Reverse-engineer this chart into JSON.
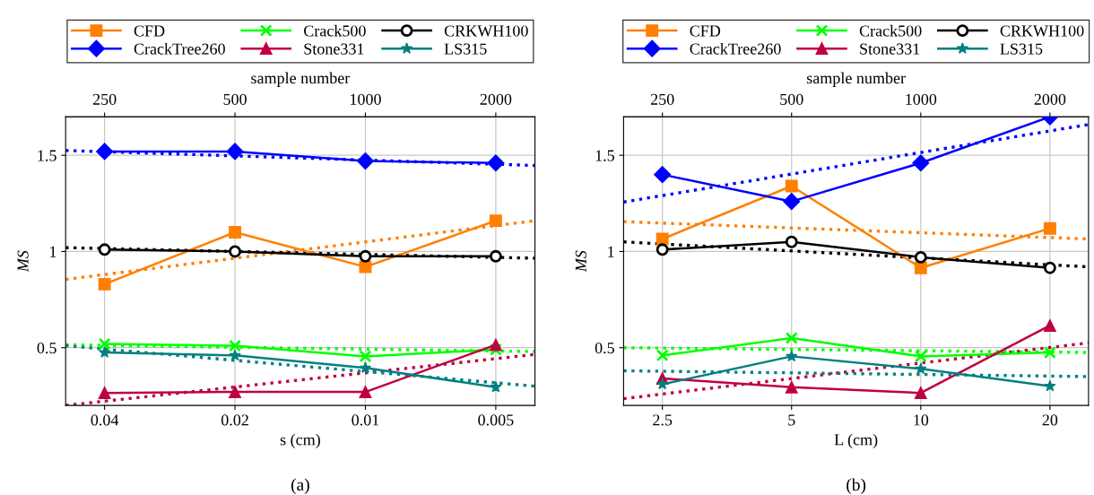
{
  "chart_data": [
    {
      "type": "line",
      "xlabel": "s (cm)",
      "ylabel": "MS",
      "x2label": "sample number",
      "log": "x",
      "annotations": [
        "(a)",
        {
          "text": "250",
          "x": 0.04
        },
        {
          "text": "500",
          "x": 0.02
        },
        {
          "text": "1000",
          "x": 0.01
        },
        {
          "text": "2000",
          "x": 0.005
        }
      ],
      "xlim": [
        0.0492,
        0.00406
      ],
      "xticks": [
        0.04,
        0.02,
        0.01,
        0.005
      ],
      "ylim": [
        0.2,
        1.7
      ],
      "yticks": [
        0.5,
        1,
        1.5
      ],
      "grid": true,
      "legend": "top",
      "line_style": "solid",
      "series": [
        {
          "name": "CFD",
          "color": "#ff7f00",
          "marker": "square",
          "x": [
            0.04,
            0.02,
            0.01,
            0.005
          ],
          "values": [
            0.83,
            1.1,
            0.92,
            1.16
          ]
        },
        {
          "name": "CrackTree260",
          "color": "#0000ff",
          "marker": "diamond",
          "x": [
            0.04,
            0.02,
            0.01,
            0.005
          ],
          "values": [
            1.52,
            1.52,
            1.47,
            1.46
          ]
        },
        {
          "name": "Crack500",
          "color": "#00ff00",
          "marker": "cross",
          "x": [
            0.04,
            0.02,
            0.01,
            0.005
          ],
          "values": [
            0.52,
            0.51,
            0.455,
            0.49
          ]
        },
        {
          "name": "Stone331",
          "color": "#bf0040",
          "marker": "triangle",
          "x": [
            0.04,
            0.02,
            0.01,
            0.005
          ],
          "values": [
            0.265,
            0.27,
            0.27,
            0.515
          ]
        },
        {
          "name": "CRKWH100",
          "color": "#000000",
          "marker": "circle",
          "x": [
            0.04,
            0.02,
            0.01,
            0.005
          ],
          "values": [
            1.01,
            1.0,
            0.975,
            0.975
          ]
        },
        {
          "name": "LS315",
          "color": "#008080",
          "marker": "star",
          "x": [
            0.04,
            0.02,
            0.01,
            0.005
          ],
          "values": [
            0.475,
            0.46,
            0.395,
            0.295
          ]
        },
        {
          "color": "#ff7f00",
          "line_style": "dotted",
          "marker": "none",
          "x": [
            0.0492,
            0.00406
          ],
          "values": [
            0.855,
            1.16
          ]
        },
        {
          "color": "#0000ff",
          "line_style": "dotted",
          "marker": "none",
          "x": [
            0.0492,
            0.00406
          ],
          "values": [
            1.525,
            1.447
          ]
        },
        {
          "color": "#00ff00",
          "line_style": "dotted",
          "marker": "none",
          "x": [
            0.0492,
            0.00406
          ],
          "values": [
            0.515,
            0.48
          ]
        },
        {
          "color": "#bf0040",
          "line_style": "dotted",
          "marker": "none",
          "x": [
            0.0492,
            0.00406
          ],
          "values": [
            0.2,
            0.465
          ]
        },
        {
          "color": "#000000",
          "line_style": "dotted",
          "marker": "none",
          "x": [
            0.0492,
            0.00406
          ],
          "values": [
            1.02,
            0.965
          ]
        },
        {
          "color": "#008080",
          "line_style": "dotted",
          "marker": "none",
          "x": [
            0.0492,
            0.00406
          ],
          "values": [
            0.51,
            0.3
          ]
        }
      ]
    },
    {
      "type": "line",
      "xlabel": "L (cm)",
      "ylabel": "MS",
      "x2label": "sample number",
      "log": "x",
      "annotations": [
        "(b)",
        {
          "text": "250",
          "x": 2.5
        },
        {
          "text": "500",
          "x": 5
        },
        {
          "text": "1000",
          "x": 10
        },
        {
          "text": "2000",
          "x": 20
        }
      ],
      "xlim": [
        2.03,
        24.6
      ],
      "xticks": [
        2.5,
        5,
        10,
        20
      ],
      "ylim": [
        0.2,
        1.7
      ],
      "yticks": [
        0.5,
        1,
        1.5
      ],
      "grid": true,
      "legend": "top",
      "line_style": "solid",
      "series": [
        {
          "name": "CFD",
          "color": "#ff7f00",
          "marker": "square",
          "x": [
            2.5,
            5,
            10,
            20
          ],
          "values": [
            1.065,
            1.34,
            0.915,
            1.12
          ]
        },
        {
          "name": "CrackTree260",
          "color": "#0000ff",
          "marker": "diamond",
          "x": [
            2.5,
            5,
            10,
            20
          ],
          "values": [
            1.4,
            1.26,
            1.46,
            1.7
          ]
        },
        {
          "name": "Crack500",
          "color": "#00ff00",
          "marker": "cross",
          "x": [
            2.5,
            5,
            10,
            20
          ],
          "values": [
            0.46,
            0.55,
            0.455,
            0.475
          ]
        },
        {
          "name": "Stone331",
          "color": "#bf0040",
          "marker": "triangle",
          "x": [
            2.5,
            5,
            10,
            20
          ],
          "values": [
            0.34,
            0.295,
            0.265,
            0.615
          ]
        },
        {
          "name": "CRKWH100",
          "color": "#000000",
          "marker": "circle",
          "x": [
            2.5,
            5,
            10,
            20
          ],
          "values": [
            1.01,
            1.05,
            0.97,
            0.915
          ]
        },
        {
          "name": "LS315",
          "color": "#008080",
          "marker": "star",
          "x": [
            2.5,
            5,
            10,
            20
          ],
          "values": [
            0.31,
            0.455,
            0.39,
            0.3
          ]
        },
        {
          "color": "#ff7f00",
          "line_style": "dotted",
          "marker": "none",
          "x": [
            2.03,
            24.6
          ],
          "values": [
            1.155,
            1.065
          ]
        },
        {
          "color": "#0000ff",
          "line_style": "dotted",
          "marker": "none",
          "x": [
            2.03,
            24.6
          ],
          "values": [
            1.257,
            1.66
          ]
        },
        {
          "color": "#00ff00",
          "line_style": "dotted",
          "marker": "none",
          "x": [
            2.03,
            24.6
          ],
          "values": [
            0.5,
            0.475
          ]
        },
        {
          "color": "#bf0040",
          "line_style": "dotted",
          "marker": "none",
          "x": [
            2.03,
            24.6
          ],
          "values": [
            0.235,
            0.525
          ]
        },
        {
          "color": "#000000",
          "line_style": "dotted",
          "marker": "none",
          "x": [
            2.03,
            24.6
          ],
          "values": [
            1.05,
            0.92
          ]
        },
        {
          "color": "#008080",
          "line_style": "dotted",
          "marker": "none",
          "x": [
            2.03,
            24.6
          ],
          "values": [
            0.38,
            0.35
          ]
        }
      ]
    }
  ]
}
